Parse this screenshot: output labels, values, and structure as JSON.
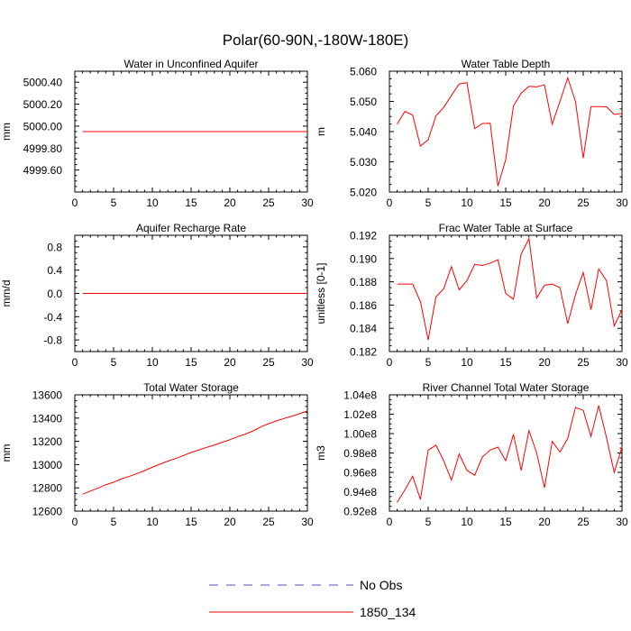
{
  "title": "Polar(60-90N,-180W-180E)",
  "colors": {
    "series": "#ff0000",
    "obs": "#5050b4",
    "axis": "#000000"
  },
  "legend": [
    {
      "label": "No Obs",
      "style": "dashed",
      "color": "#5050b4"
    },
    {
      "label": "1850_134",
      "style": "solid",
      "color": "#ff0000"
    }
  ],
  "chart_data": [
    {
      "type": "line",
      "title": "Water in Unconfined Aquifer",
      "xlabel": "",
      "ylabel": "mm",
      "xlim": [
        0,
        30
      ],
      "ylim": [
        4999.4,
        5000.5
      ],
      "xticks": [
        0,
        5,
        10,
        15,
        20,
        25,
        30
      ],
      "xtick_labels": [
        "0",
        "5",
        "10",
        "15",
        "20",
        "25",
        "30"
      ],
      "yticks": [
        4999.6,
        4999.8,
        5000.0,
        5000.2,
        5000.4
      ],
      "ytick_labels": [
        "4999.60",
        "4999.80",
        "5000.00",
        "5000.20",
        "5000.40"
      ],
      "x": [
        1,
        30
      ],
      "series": [
        {
          "name": "1850_134",
          "values": [
            4999.95,
            4999.95
          ]
        }
      ]
    },
    {
      "type": "line",
      "title": "Water Table Depth",
      "xlabel": "",
      "ylabel": "m",
      "xlim": [
        0,
        30
      ],
      "ylim": [
        5.02,
        5.06
      ],
      "xticks": [
        0,
        5,
        10,
        15,
        20,
        25,
        30
      ],
      "xtick_labels": [
        "0",
        "5",
        "10",
        "15",
        "20",
        "25",
        "30"
      ],
      "yticks": [
        5.02,
        5.03,
        5.04,
        5.05,
        5.06
      ],
      "ytick_labels": [
        "5.020",
        "5.030",
        "5.040",
        "5.050",
        "5.060"
      ],
      "x": [
        1,
        2,
        3,
        4,
        5,
        6,
        7,
        8,
        9,
        10,
        11,
        12,
        13,
        14,
        15,
        16,
        17,
        18,
        19,
        20,
        21,
        22,
        23,
        24,
        25,
        26,
        27,
        28,
        29,
        30
      ],
      "series": [
        {
          "name": "1850_134",
          "values": [
            5.0425,
            5.0467,
            5.0455,
            5.0352,
            5.0373,
            5.0452,
            5.048,
            5.052,
            5.0558,
            5.0562,
            5.041,
            5.0427,
            5.0428,
            5.022,
            5.0307,
            5.0485,
            5.0527,
            5.055,
            5.0548,
            5.0555,
            5.0425,
            5.05,
            5.0578,
            5.05,
            5.0312,
            5.0483,
            5.0483,
            5.0482,
            5.0457,
            5.046
          ]
        }
      ]
    },
    {
      "type": "line",
      "title": "Aquifer Recharge Rate",
      "xlabel": "",
      "ylabel": "mm/d",
      "xlim": [
        0,
        30
      ],
      "ylim": [
        -1.0,
        1.0
      ],
      "xticks": [
        0,
        5,
        10,
        15,
        20,
        25,
        30
      ],
      "xtick_labels": [
        "0",
        "5",
        "10",
        "15",
        "20",
        "25",
        "30"
      ],
      "yticks": [
        -0.8,
        -0.4,
        0.0,
        0.4,
        0.8
      ],
      "ytick_labels": [
        "-0.8",
        "-0.4",
        "0.0",
        "0.4",
        "0.8"
      ],
      "x": [
        1,
        30
      ],
      "series": [
        {
          "name": "1850_134",
          "values": [
            0.0,
            0.0
          ]
        }
      ]
    },
    {
      "type": "line",
      "title": "Frac Water Table at Surface",
      "xlabel": "",
      "ylabel": "unitless [0-1]",
      "xlim": [
        0,
        30
      ],
      "ylim": [
        0.182,
        0.192
      ],
      "xticks": [
        0,
        5,
        10,
        15,
        20,
        25,
        30
      ],
      "xtick_labels": [
        "0",
        "5",
        "10",
        "15",
        "20",
        "25",
        "30"
      ],
      "yticks": [
        0.182,
        0.184,
        0.186,
        0.188,
        0.19,
        0.192
      ],
      "ytick_labels": [
        "0.182",
        "0.184",
        "0.186",
        "0.188",
        "0.190",
        "0.192"
      ],
      "x": [
        1,
        2,
        3,
        4,
        5,
        6,
        7,
        8,
        9,
        10,
        11,
        12,
        13,
        14,
        15,
        16,
        17,
        18,
        19,
        20,
        21,
        22,
        23,
        24,
        25,
        26,
        27,
        28,
        29,
        30
      ],
      "series": [
        {
          "name": "1850_134",
          "values": [
            0.1878,
            0.1878,
            0.1878,
            0.1863,
            0.183,
            0.1867,
            0.1874,
            0.1893,
            0.1873,
            0.1881,
            0.1895,
            0.1894,
            0.1896,
            0.1899,
            0.187,
            0.1865,
            0.1904,
            0.1917,
            0.1866,
            0.1877,
            0.1878,
            0.1875,
            0.1844,
            0.1869,
            0.1888,
            0.1856,
            0.1891,
            0.1881,
            0.1842,
            0.1856
          ]
        }
      ]
    },
    {
      "type": "line",
      "title": "Total Water Storage",
      "xlabel": "",
      "ylabel": "mm",
      "xlim": [
        0,
        30
      ],
      "ylim": [
        12600,
        13600
      ],
      "xticks": [
        0,
        5,
        10,
        15,
        20,
        25,
        30
      ],
      "xtick_labels": [
        "0",
        "5",
        "10",
        "15",
        "20",
        "25",
        "30"
      ],
      "yticks": [
        12600,
        12800,
        13000,
        13200,
        13400,
        13600
      ],
      "ytick_labels": [
        "12600",
        "12800",
        "13000",
        "13200",
        "13400",
        "13600"
      ],
      "x": [
        1,
        2,
        3,
        4,
        5,
        6,
        7,
        8,
        9,
        10,
        11,
        12,
        13,
        14,
        15,
        16,
        17,
        18,
        19,
        20,
        21,
        22,
        23,
        24,
        25,
        26,
        27,
        28,
        29,
        30
      ],
      "series": [
        {
          "name": "1850_134",
          "values": [
            12745,
            12772,
            12798,
            12827,
            12848,
            12877,
            12898,
            12923,
            12948,
            12978,
            13004,
            13030,
            13052,
            13078,
            13104,
            13126,
            13148,
            13168,
            13192,
            13214,
            13240,
            13262,
            13290,
            13324,
            13352,
            13376,
            13397,
            13416,
            13437,
            13462
          ]
        }
      ]
    },
    {
      "type": "line",
      "title": "River Channel Total Water Storage",
      "xlabel": "",
      "ylabel": "m3",
      "xlim": [
        0,
        30
      ],
      "ylim": [
        92000000.0,
        104000000.0
      ],
      "xticks": [
        0,
        5,
        10,
        15,
        20,
        25,
        30
      ],
      "xtick_labels": [
        "0",
        "5",
        "10",
        "15",
        "20",
        "25",
        "30"
      ],
      "yticks": [
        92000000.0,
        94000000.0,
        96000000.0,
        98000000.0,
        100000000.0,
        102000000.0,
        104000000.0
      ],
      "ytick_labels": [
        "0.92e8",
        "0.94e8",
        "0.96e8",
        "0.98e8",
        "1.00e8",
        "1.02e8",
        "1.04e8"
      ],
      "x": [
        1,
        2,
        3,
        4,
        5,
        6,
        7,
        8,
        9,
        10,
        11,
        12,
        13,
        14,
        15,
        16,
        17,
        18,
        19,
        20,
        21,
        22,
        23,
        24,
        25,
        26,
        27,
        28,
        29,
        30
      ],
      "series": [
        {
          "name": "1850_134",
          "values": [
            92900000.0,
            94200000.0,
            95600000.0,
            93200000.0,
            98300000.0,
            98800000.0,
            97200000.0,
            95200000.0,
            97900000.0,
            96200000.0,
            95700000.0,
            97600000.0,
            98300000.0,
            98600000.0,
            97200000.0,
            99900000.0,
            96200000.0,
            100300000.0,
            98000000.0,
            94400000.0,
            99200000.0,
            98100000.0,
            99500000.0,
            102700000.0,
            102400000.0,
            99700000.0,
            102900000.0,
            99600000.0,
            96000000.0,
            98600000.0
          ]
        }
      ]
    }
  ]
}
